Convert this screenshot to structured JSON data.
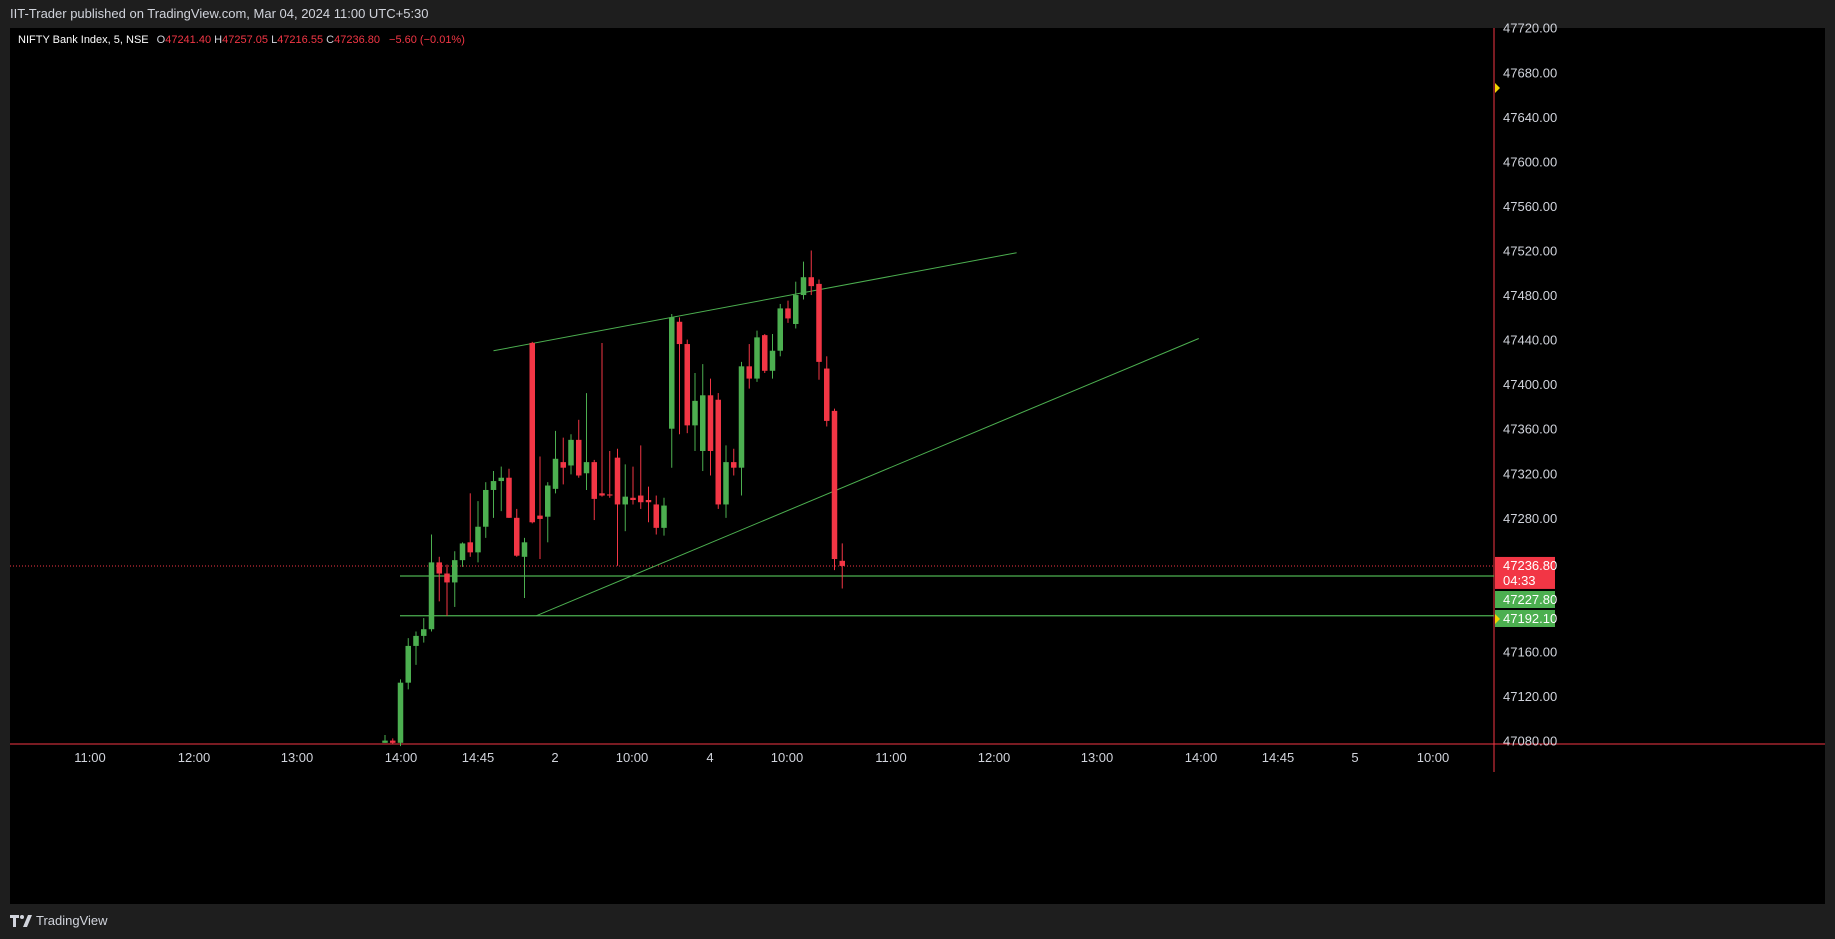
{
  "header": {
    "published": "IIT-Trader published on TradingView.com, Mar 04, 2024 11:00 UTC+5:30"
  },
  "legend": {
    "symbol": "NIFTY Bank Index, 5, NSE",
    "o_label": "O",
    "o": "47241.40",
    "h_label": "H",
    "h": "47257.05",
    "l_label": "L",
    "l": "47216.55",
    "c_label": "C",
    "c": "47236.80",
    "change": "−5.60 (−0.01%)"
  },
  "footer": {
    "brand": "TradingView"
  },
  "colors": {
    "up": "#4caf50",
    "down": "#f23645",
    "line": "#4caf50",
    "bg": "#000000",
    "axis_text": "#d1d4dc",
    "marker": "#f5d300"
  },
  "chart_data": {
    "type": "candlestick",
    "title": "NIFTY Bank Index, 5, NSE",
    "y_ticks": [
      "47720.00",
      "47680.00",
      "47640.00",
      "47600.00",
      "47560.00",
      "47520.00",
      "47480.00",
      "47440.00",
      "47400.00",
      "47360.00",
      "47320.00",
      "47280.00",
      "47160.00",
      "47120.00",
      "47080.00"
    ],
    "ylim": [
      47078,
      47724
    ],
    "x_ticks": [
      "11:00",
      "12:00",
      "13:00",
      "14:00",
      "14:45",
      "2",
      "10:00",
      "4",
      "10:00",
      "11:00",
      "12:00",
      "13:00",
      "14:00",
      "14:45",
      "5",
      "10:00"
    ],
    "price_tags": [
      {
        "label": "47236.80",
        "sub": "04:33",
        "value": 47236.8,
        "color": "#f23645"
      },
      {
        "label": "47227.80",
        "value": 47227.8,
        "color": "#4caf50"
      },
      {
        "label": "47192.10",
        "value": 47192.1,
        "color": "#4caf50"
      }
    ],
    "current_price": 47236.8,
    "horizontal_levels": [
      47227.8,
      47192.1
    ],
    "trendlines": [
      {
        "name": "upper",
        "from": [
          "12:35",
          47430
        ],
        "to": [
          "14:35",
          47518
        ]
      },
      {
        "name": "lower",
        "from": [
          "13:10",
          47192
        ],
        "to": [
          "15:25",
          47441
        ]
      }
    ],
    "candles": [
      {
        "t": "Mar 01 13:55",
        "o": 47078,
        "h": 47085,
        "l": 47078,
        "c": 47080
      },
      {
        "t": "Mar 01 14:00",
        "o": 47080,
        "h": 47082,
        "l": 47077,
        "c": 47078
      },
      {
        "t": "Mar 01 14:05",
        "o": 47078,
        "h": 47135,
        "l": 47075,
        "c": 47132
      },
      {
        "t": "Mar 01 14:10",
        "o": 47132,
        "h": 47172,
        "l": 47126,
        "c": 47165
      },
      {
        "t": "Mar 01 14:15",
        "o": 47165,
        "h": 47178,
        "l": 47148,
        "c": 47174
      },
      {
        "t": "Mar 01 14:20",
        "o": 47174,
        "h": 47190,
        "l": 47168,
        "c": 47180
      },
      {
        "t": "Mar 01 14:25",
        "o": 47180,
        "h": 47265,
        "l": 47178,
        "c": 47240
      },
      {
        "t": "Mar 01 14:30",
        "o": 47240,
        "h": 47245,
        "l": 47205,
        "c": 47230
      },
      {
        "t": "Mar 01 14:35",
        "o": 47230,
        "h": 47238,
        "l": 47192,
        "c": 47222
      },
      {
        "t": "Mar 01 14:40",
        "o": 47222,
        "h": 47250,
        "l": 47200,
        "c": 47242
      },
      {
        "t": "Mar 01 14:45",
        "o": 47242,
        "h": 47258,
        "l": 47236,
        "c": 47257
      },
      {
        "t": "Mar 01 14:50",
        "o": 47258,
        "h": 47302,
        "l": 47245,
        "c": 47249
      },
      {
        "t": "Mar 01 14:55",
        "o": 47249,
        "h": 47295,
        "l": 47240,
        "c": 47272
      },
      {
        "t": "Mar 01 15:00",
        "o": 47272,
        "h": 47312,
        "l": 47262,
        "c": 47305
      },
      {
        "t": "Mar 01 15:05",
        "o": 47305,
        "h": 47322,
        "l": 47280,
        "c": 47313
      },
      {
        "t": "Mar 01 15:10",
        "o": 47313,
        "h": 47326,
        "l": 47286,
        "c": 47316
      },
      {
        "t": "Mar 01 15:15",
        "o": 47316,
        "h": 47324,
        "l": 47280,
        "c": 47280
      },
      {
        "t": "Mar 01 15:20",
        "o": 47280,
        "h": 47288,
        "l": 47245,
        "c": 47246
      },
      {
        "t": "Mar 02 09:15",
        "o": 47245,
        "h": 47262,
        "l": 47208,
        "c": 47258
      },
      {
        "t": "Mar 02 09:20",
        "o": 47437,
        "h": 47438,
        "l": 47275,
        "c": 47276
      },
      {
        "t": "Mar 02 09:25",
        "o": 47282,
        "h": 47335,
        "l": 47243,
        "c": 47279
      },
      {
        "t": "Mar 02 09:30",
        "o": 47281,
        "h": 47312,
        "l": 47258,
        "c": 47309
      },
      {
        "t": "Mar 02 09:35",
        "o": 47306,
        "h": 47358,
        "l": 47302,
        "c": 47333
      },
      {
        "t": "Mar 02 09:40",
        "o": 47330,
        "h": 47352,
        "l": 47310,
        "c": 47325
      },
      {
        "t": "Mar 02 09:45",
        "o": 47327,
        "h": 47355,
        "l": 47319,
        "c": 47350
      },
      {
        "t": "Mar 02 09:50",
        "o": 47350,
        "h": 47368,
        "l": 47316,
        "c": 47318
      },
      {
        "t": "Mar 02 09:55",
        "o": 47320,
        "h": 47392,
        "l": 47305,
        "c": 47330
      },
      {
        "t": "Mar 02 10:00",
        "o": 47330,
        "h": 47332,
        "l": 47278,
        "c": 47297
      },
      {
        "t": "Mar 02 10:05",
        "o": 47302,
        "h": 47437,
        "l": 47299,
        "c": 47300
      },
      {
        "t": "Mar 02 10:10",
        "o": 47301,
        "h": 47340,
        "l": 47298,
        "c": 47300
      },
      {
        "t": "Mar 02 10:15",
        "o": 47334,
        "h": 47342,
        "l": 47237,
        "c": 47292
      },
      {
        "t": "Mar 02 10:20",
        "o": 47292,
        "h": 47328,
        "l": 47268,
        "c": 47299
      },
      {
        "t": "Mar 02 10:25",
        "o": 47298,
        "h": 47326,
        "l": 47292,
        "c": 47296
      },
      {
        "t": "Mar 02 10:30",
        "o": 47300,
        "h": 47345,
        "l": 47288,
        "c": 47294
      },
      {
        "t": "Mar 02 10:35",
        "o": 47296,
        "h": 47308,
        "l": 47276,
        "c": 47294
      },
      {
        "t": "Mar 02 10:40",
        "o": 47292,
        "h": 47300,
        "l": 47265,
        "c": 47271
      },
      {
        "t": "Mar 02 10:45",
        "o": 47271,
        "h": 47298,
        "l": 47264,
        "c": 47291
      },
      {
        "t": "Mar 04 09:15",
        "o": 47360,
        "h": 47463,
        "l": 47325,
        "c": 47460
      },
      {
        "t": "Mar 04 09:20",
        "o": 47456,
        "h": 47460,
        "l": 47355,
        "c": 47436
      },
      {
        "t": "Mar 04 09:25",
        "o": 47436,
        "h": 47440,
        "l": 47356,
        "c": 47363
      },
      {
        "t": "Mar 04 09:30",
        "o": 47363,
        "h": 47410,
        "l": 47340,
        "c": 47385
      },
      {
        "t": "Mar 04 09:35",
        "o": 47340,
        "h": 47418,
        "l": 47322,
        "c": 47390
      },
      {
        "t": "Mar 04 09:40",
        "o": 47390,
        "h": 47405,
        "l": 47318,
        "c": 47340
      },
      {
        "t": "Mar 04 09:45",
        "o": 47386,
        "h": 47392,
        "l": 47288,
        "c": 47292
      },
      {
        "t": "Mar 04 09:50",
        "o": 47292,
        "h": 47345,
        "l": 47280,
        "c": 47330
      },
      {
        "t": "Mar 04 09:55",
        "o": 47330,
        "h": 47342,
        "l": 47318,
        "c": 47325
      },
      {
        "t": "Mar 04 10:00",
        "o": 47325,
        "h": 47420,
        "l": 47300,
        "c": 47416
      },
      {
        "t": "Mar 04 10:05",
        "o": 47416,
        "h": 47436,
        "l": 47396,
        "c": 47405
      },
      {
        "t": "Mar 04 10:10",
        "o": 47405,
        "h": 47448,
        "l": 47402,
        "c": 47442
      },
      {
        "t": "Mar 04 10:15",
        "o": 47444,
        "h": 47445,
        "l": 47410,
        "c": 47412
      },
      {
        "t": "Mar 04 10:20",
        "o": 47412,
        "h": 47445,
        "l": 47405,
        "c": 47430
      },
      {
        "t": "Mar 04 10:25",
        "o": 47430,
        "h": 47472,
        "l": 47425,
        "c": 47468
      },
      {
        "t": "Mar 04 10:30",
        "o": 47468,
        "h": 47475,
        "l": 47455,
        "c": 47459
      },
      {
        "t": "Mar 04 10:35",
        "o": 47454,
        "h": 47492,
        "l": 47450,
        "c": 47480
      },
      {
        "t": "Mar 04 10:40",
        "o": 47480,
        "h": 47510,
        "l": 47476,
        "c": 47496
      },
      {
        "t": "Mar 04 10:45",
        "o": 47496,
        "h": 47520,
        "l": 47480,
        "c": 47488
      },
      {
        "t": "Mar 04 10:50",
        "o": 47490,
        "h": 47494,
        "l": 47404,
        "c": 47420
      },
      {
        "t": "Mar 04 10:55",
        "o": 47414,
        "h": 47425,
        "l": 47362,
        "c": 47367
      },
      {
        "t": "Mar 04 11:00",
        "o": 47376,
        "h": 47378,
        "l": 47233,
        "c": 47243
      },
      {
        "t": "Mar 04 11:05",
        "o": 47241.4,
        "h": 47257.05,
        "l": 47216.55,
        "c": 47236.8
      }
    ]
  }
}
